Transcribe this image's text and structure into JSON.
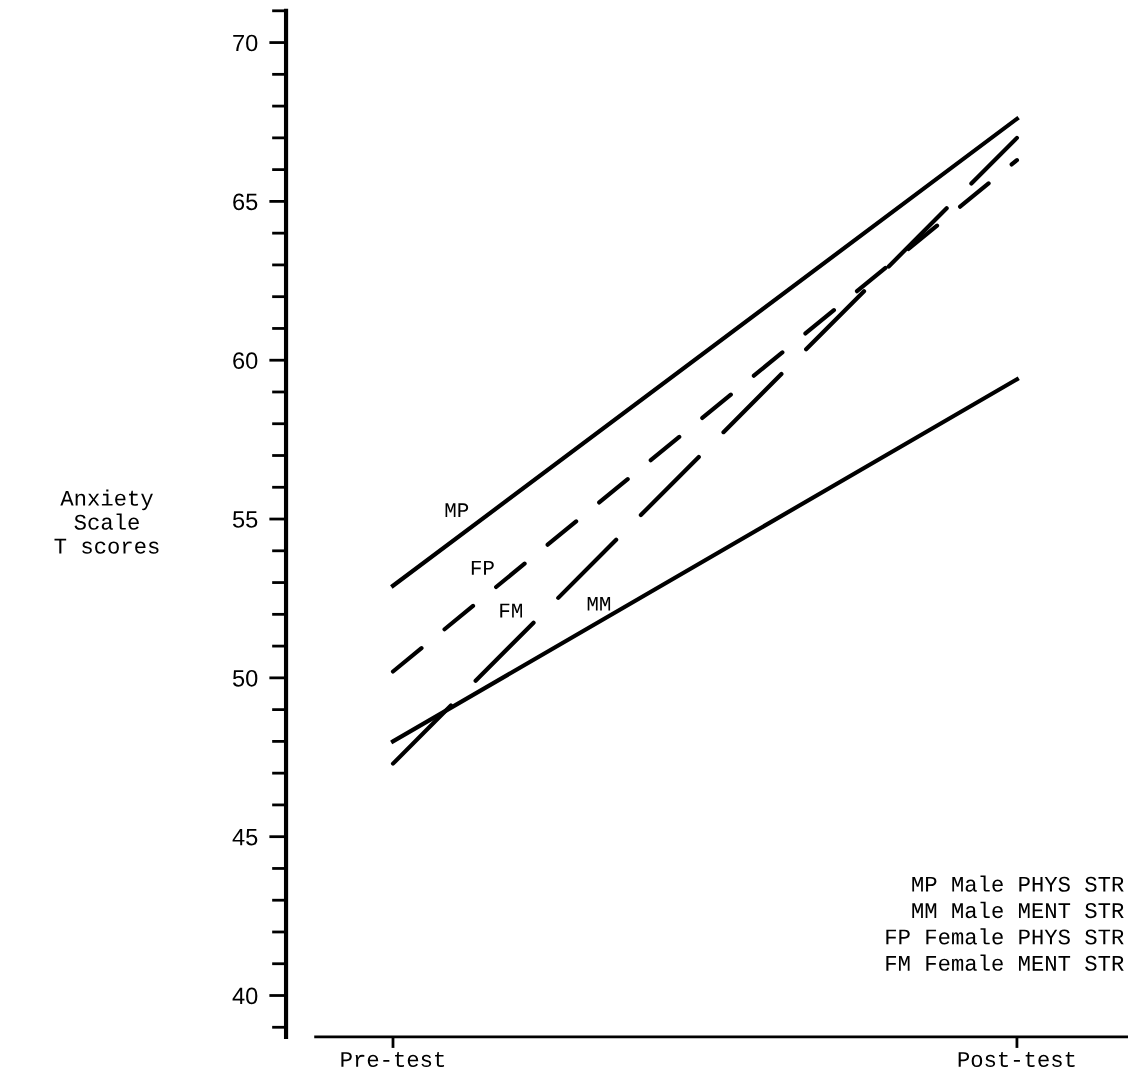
{
  "chart_data": {
    "type": "line",
    "ylabel": "Anxiety\nScale\nT scores",
    "categories": [
      "Pre-test",
      "Post-test"
    ],
    "series": [
      {
        "name": "MP",
        "color": "#000000",
        "line_style": "solid",
        "values": [
          52.9,
          67.6
        ]
      },
      {
        "name": "MM",
        "color": "#000000",
        "line_style": "solid",
        "values": [
          48.0,
          59.4
        ]
      },
      {
        "name": "FP",
        "color": "#000000",
        "line_style": "dashed",
        "values": [
          50.2,
          66.3
        ]
      },
      {
        "name": "FM",
        "color": "#000000",
        "line_style": "dashed",
        "values": [
          47.3,
          67.0
        ]
      }
    ],
    "ylim": [
      38.7,
      71
    ],
    "yticks": [
      40,
      45,
      50,
      55,
      60,
      65,
      70
    ],
    "grid": false,
    "legend": false,
    "marker": "none",
    "annotations": [
      "MP Male PHYS STR\nMM Male MENT STR\nFP Female PHYS STR\nFM Female MENT STR"
    ]
  }
}
